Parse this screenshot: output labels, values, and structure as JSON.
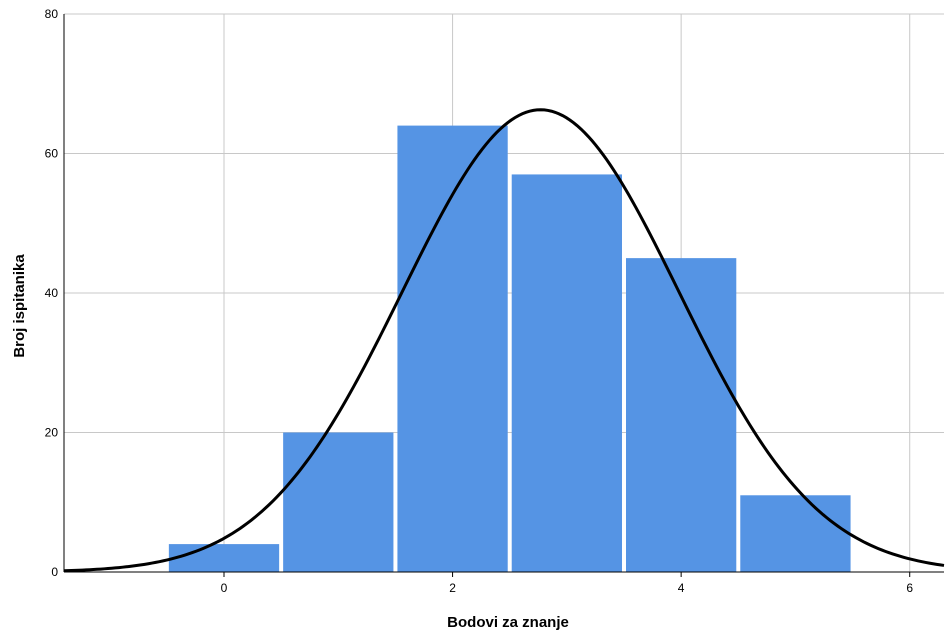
{
  "chart_data": {
    "type": "bar",
    "subtype": "histogram with normal curve",
    "xlabel": "Bodovi za znanje",
    "ylabel": "Broj ispitanika",
    "xlim": [
      -1.4,
      6.3
    ],
    "ylim": [
      0,
      80
    ],
    "x_ticks": [
      0,
      2,
      4,
      6
    ],
    "y_ticks": [
      0,
      20,
      40,
      60,
      80
    ],
    "grid": true,
    "bins": [
      {
        "x": 0,
        "value": 4
      },
      {
        "x": 1,
        "value": 20
      },
      {
        "x": 2,
        "value": 64
      },
      {
        "x": 3,
        "value": 57
      },
      {
        "x": 4,
        "value": 45
      },
      {
        "x": 5,
        "value": 11
      }
    ],
    "normal_curve": {
      "mean": 2.77,
      "sd": 1.21,
      "n": 201
    },
    "colors": {
      "bar": "#5594e4",
      "curve": "#000000",
      "grid": "#c8c8c8",
      "axis": "#000000"
    }
  }
}
